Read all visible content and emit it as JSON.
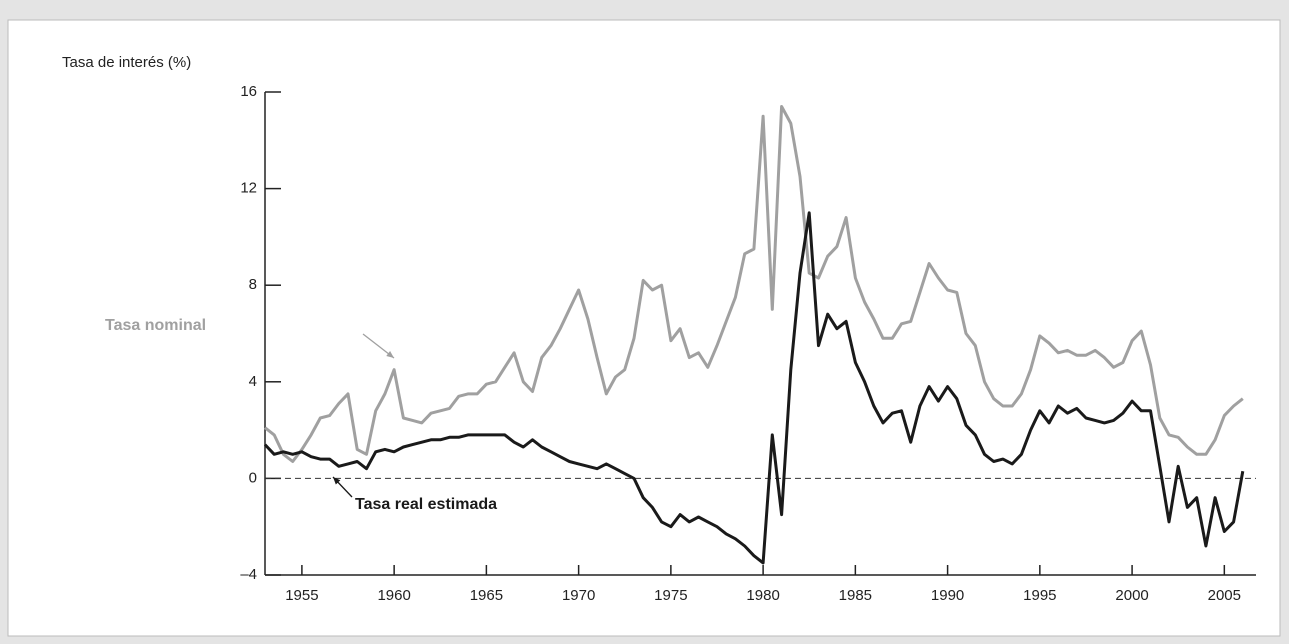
{
  "chart_data": {
    "type": "line",
    "y_label": "Tasa de interés (%)",
    "x": [
      1953,
      1953.5,
      1954,
      1954.5,
      1955,
      1955.5,
      1956,
      1956.5,
      1957,
      1957.5,
      1958,
      1958.5,
      1959,
      1959.5,
      1960,
      1960.5,
      1961,
      1961.5,
      1962,
      1962.5,
      1963,
      1963.5,
      1964,
      1964.5,
      1965,
      1965.5,
      1966,
      1966.5,
      1967,
      1967.5,
      1968,
      1968.5,
      1969,
      1969.5,
      1970,
      1970.5,
      1971,
      1971.5,
      1972,
      1972.5,
      1973,
      1973.5,
      1974,
      1974.5,
      1975,
      1975.5,
      1976,
      1976.5,
      1977,
      1977.5,
      1978,
      1978.5,
      1979,
      1979.5,
      1980,
      1980.5,
      1981,
      1981.5,
      1982,
      1982.5,
      1983,
      1983.5,
      1984,
      1984.5,
      1985,
      1985.5,
      1986,
      1986.5,
      1987,
      1987.5,
      1988,
      1988.5,
      1989,
      1989.5,
      1990,
      1990.5,
      1991,
      1991.5,
      1992,
      1992.5,
      1993,
      1993.5,
      1994,
      1994.5,
      1995,
      1995.5,
      1996,
      1996.5,
      1997,
      1997.5,
      1998,
      1998.5,
      1999,
      1999.5,
      2000,
      2000.5,
      2001,
      2001.5,
      2002,
      2002.5,
      2003,
      2003.5,
      2004,
      2004.5,
      2005,
      2005.5,
      2006
    ],
    "series": [
      {
        "name": "Tasa nominal",
        "color": "#a0a0a0",
        "values": [
          2.1,
          1.8,
          1.0,
          0.7,
          1.2,
          1.8,
          2.5,
          2.6,
          3.1,
          3.5,
          1.2,
          1.0,
          2.8,
          3.5,
          4.5,
          2.5,
          2.4,
          2.3,
          2.7,
          2.8,
          2.9,
          3.4,
          3.5,
          3.5,
          3.9,
          4.0,
          4.6,
          5.2,
          4.0,
          3.6,
          5.0,
          5.5,
          6.2,
          7.0,
          7.8,
          6.6,
          5.0,
          3.5,
          4.2,
          4.5,
          5.8,
          8.2,
          7.8,
          8.0,
          5.7,
          6.2,
          5.0,
          5.2,
          4.6,
          5.5,
          6.5,
          7.5,
          9.3,
          9.5,
          15.0,
          7.0,
          15.4,
          14.7,
          12.5,
          8.5,
          8.3,
          9.2,
          9.6,
          10.8,
          8.3,
          7.3,
          6.6,
          5.8,
          5.8,
          6.4,
          6.5,
          7.7,
          8.9,
          8.3,
          7.8,
          7.7,
          6.0,
          5.5,
          4.0,
          3.3,
          3.0,
          3.0,
          3.5,
          4.5,
          5.9,
          5.6,
          5.2,
          5.3,
          5.1,
          5.1,
          5.3,
          5.0,
          4.6,
          4.8,
          5.7,
          6.1,
          4.7,
          2.5,
          1.8,
          1.7,
          1.3,
          1.0,
          1.0,
          1.6,
          2.6,
          3.0,
          3.3
        ]
      },
      {
        "name": "Tasa real estimada",
        "color": "#1a1a1a",
        "values": [
          1.4,
          1.0,
          1.1,
          1.0,
          1.1,
          0.9,
          0.8,
          0.8,
          0.5,
          0.6,
          0.7,
          0.4,
          1.1,
          1.2,
          1.1,
          1.3,
          1.4,
          1.5,
          1.6,
          1.6,
          1.7,
          1.7,
          1.8,
          1.8,
          1.8,
          1.8,
          1.8,
          1.5,
          1.3,
          1.6,
          1.3,
          1.1,
          0.9,
          0.7,
          0.6,
          0.5,
          0.4,
          0.6,
          0.4,
          0.2,
          0.0,
          -0.8,
          -1.2,
          -1.8,
          -2.0,
          -1.5,
          -1.8,
          -1.6,
          -1.8,
          -2.0,
          -2.3,
          -2.5,
          -2.8,
          -3.2,
          -3.5,
          1.8,
          -1.5,
          4.5,
          8.5,
          11.0,
          5.5,
          6.8,
          6.2,
          6.5,
          4.8,
          4.0,
          3.0,
          2.3,
          2.7,
          2.8,
          1.5,
          3.0,
          3.8,
          3.2,
          3.8,
          3.3,
          2.2,
          1.8,
          1.0,
          0.7,
          0.8,
          0.6,
          1.0,
          2.0,
          2.8,
          2.3,
          3.0,
          2.7,
          2.9,
          2.5,
          2.4,
          2.3,
          2.4,
          2.7,
          3.2,
          2.8,
          2.8,
          0.5,
          -1.8,
          0.5,
          -1.2,
          -0.8,
          -2.8,
          -0.8,
          -2.2,
          -1.8,
          0.3
        ]
      }
    ],
    "xlim": [
      1953,
      2006.5
    ],
    "xticks": [
      1955,
      1960,
      1965,
      1970,
      1975,
      1980,
      1985,
      1990,
      1995,
      2000,
      2005
    ],
    "ylim": [
      -4,
      16
    ],
    "yticks": [
      {
        "value": -4,
        "label": "–4"
      },
      0,
      4,
      8,
      12,
      16
    ]
  }
}
